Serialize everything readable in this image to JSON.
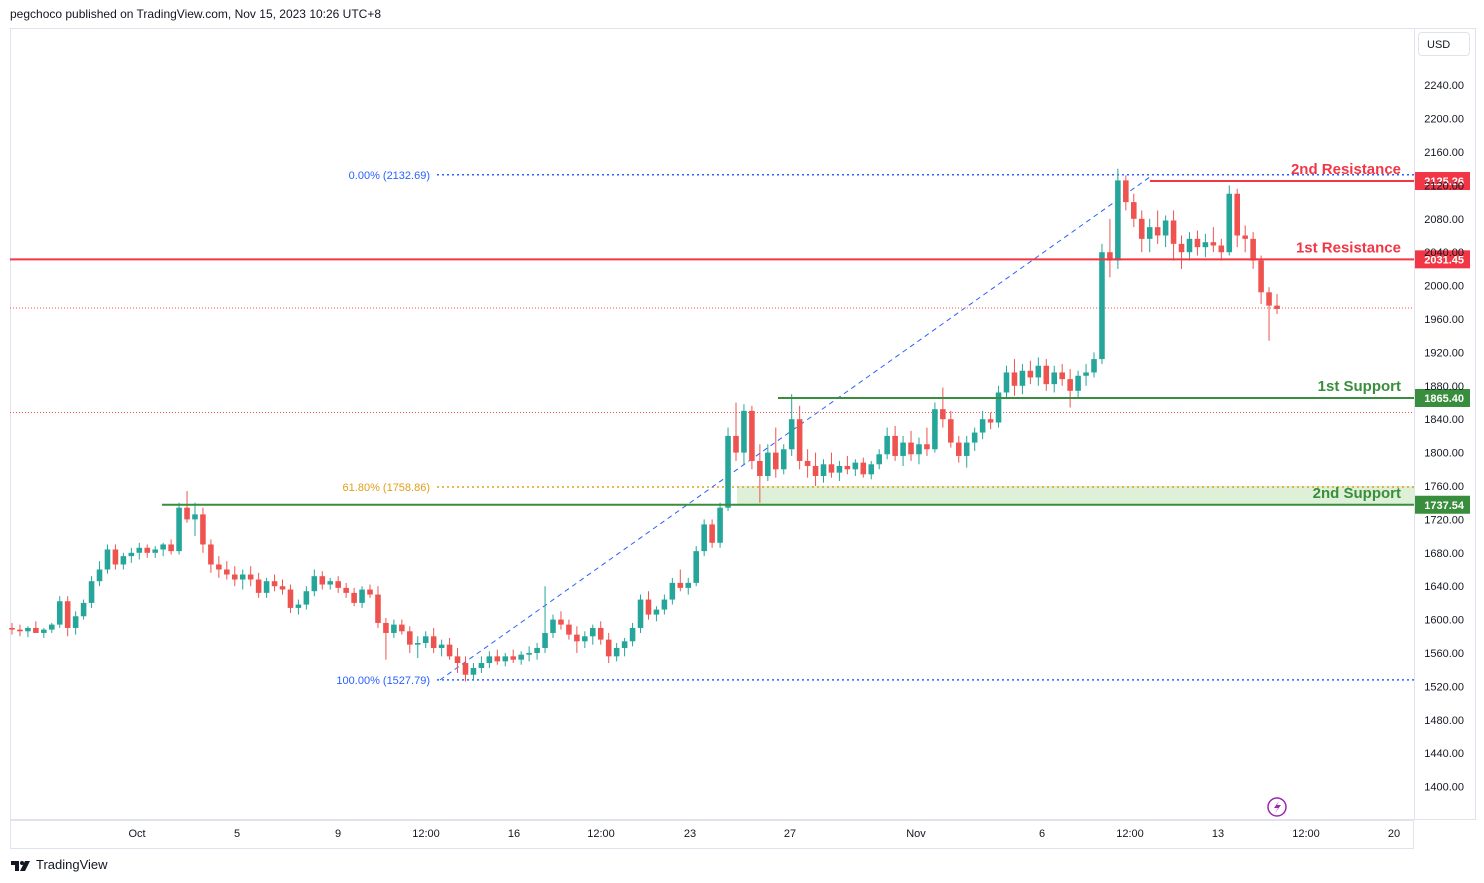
{
  "header": {
    "publisher": "pegchoco published on TradingView.com, Nov 15, 2023 10:26 UTC+8"
  },
  "axis": {
    "currency": "USD",
    "price_ticks": [
      "2240.00",
      "2200.00",
      "2160.00",
      "2120.00",
      "2080.00",
      "2040.00",
      "2000.00",
      "1960.00",
      "1920.00",
      "1880.00",
      "1840.00",
      "1800.00",
      "1760.00",
      "1720.00",
      "1680.00",
      "1640.00",
      "1600.00",
      "1560.00",
      "1520.00",
      "1480.00",
      "1440.00",
      "1400.00"
    ],
    "time_ticks": [
      "Oct",
      "5",
      "9",
      "12:00",
      "16",
      "12:00",
      "23",
      "27",
      "Nov",
      "6",
      "12:00",
      "13",
      "12:00",
      "20"
    ]
  },
  "footer": {
    "brand": "TradingView"
  },
  "colors": {
    "resistance": "#f23645",
    "support": "#388e3c",
    "up": "#26a69a",
    "down": "#ef5350",
    "fib_blue": "#2962ff",
    "fib_gold": "#e0a01a",
    "support_zone": "#dff0d8"
  },
  "chart_data": {
    "type": "candlestick",
    "title": "",
    "ylabel": "USD",
    "ylim": [
      1360,
      2280
    ],
    "levels": [
      {
        "name": "2nd Resistance",
        "value": 2125.26,
        "label": "2125.26",
        "kind": "resistance"
      },
      {
        "name": "1st Resistance",
        "value": 2031.45,
        "label": "2031.45",
        "kind": "resistance"
      },
      {
        "name": "1st Support",
        "value": 1865.4,
        "label": "1865.40",
        "kind": "support"
      },
      {
        "name": "2nd Support",
        "value": 1737.54,
        "label": "1737.54",
        "kind": "support"
      }
    ],
    "fibonacci": [
      {
        "label": "0.00% (2132.69)",
        "value": 2132.69
      },
      {
        "label": "61.80% (1758.86)",
        "value": 1758.86
      },
      {
        "label": "100.00% (1527.79)",
        "value": 1527.79
      }
    ],
    "current_price": 1972,
    "candles": [
      [
        1590,
        1596,
        1582,
        1588
      ],
      [
        1588,
        1594,
        1580,
        1586
      ],
      [
        1586,
        1592,
        1579,
        1590
      ],
      [
        1590,
        1598,
        1585,
        1584
      ],
      [
        1584,
        1590,
        1578,
        1588
      ],
      [
        1588,
        1596,
        1584,
        1594
      ],
      [
        1594,
        1628,
        1590,
        1622
      ],
      [
        1622,
        1628,
        1580,
        1590
      ],
      [
        1590,
        1610,
        1582,
        1604
      ],
      [
        1604,
        1624,
        1600,
        1620
      ],
      [
        1620,
        1652,
        1614,
        1646
      ],
      [
        1646,
        1670,
        1640,
        1660
      ],
      [
        1660,
        1690,
        1655,
        1684
      ],
      [
        1684,
        1690,
        1660,
        1666
      ],
      [
        1666,
        1680,
        1660,
        1676
      ],
      [
        1676,
        1686,
        1668,
        1680
      ],
      [
        1680,
        1692,
        1672,
        1686
      ],
      [
        1686,
        1690,
        1674,
        1680
      ],
      [
        1680,
        1688,
        1674,
        1684
      ],
      [
        1684,
        1692,
        1676,
        1690
      ],
      [
        1690,
        1696,
        1678,
        1682
      ],
      [
        1682,
        1740,
        1678,
        1734
      ],
      [
        1734,
        1754,
        1716,
        1720
      ],
      [
        1720,
        1740,
        1700,
        1726
      ],
      [
        1726,
        1734,
        1680,
        1690
      ],
      [
        1690,
        1696,
        1656,
        1666
      ],
      [
        1666,
        1676,
        1650,
        1660
      ],
      [
        1660,
        1670,
        1648,
        1654
      ],
      [
        1654,
        1664,
        1640,
        1648
      ],
      [
        1648,
        1660,
        1636,
        1654
      ],
      [
        1654,
        1664,
        1640,
        1648
      ],
      [
        1648,
        1656,
        1626,
        1632
      ],
      [
        1632,
        1650,
        1626,
        1646
      ],
      [
        1646,
        1654,
        1634,
        1640
      ],
      [
        1640,
        1648,
        1630,
        1636
      ],
      [
        1636,
        1642,
        1608,
        1614
      ],
      [
        1614,
        1624,
        1606,
        1618
      ],
      [
        1618,
        1640,
        1612,
        1634
      ],
      [
        1634,
        1660,
        1628,
        1652
      ],
      [
        1652,
        1658,
        1636,
        1642
      ],
      [
        1642,
        1650,
        1636,
        1646
      ],
      [
        1646,
        1652,
        1632,
        1638
      ],
      [
        1638,
        1644,
        1626,
        1632
      ],
      [
        1632,
        1638,
        1616,
        1620
      ],
      [
        1620,
        1640,
        1614,
        1636
      ],
      [
        1636,
        1642,
        1626,
        1630
      ],
      [
        1630,
        1640,
        1590,
        1596
      ],
      [
        1596,
        1602,
        1552,
        1584
      ],
      [
        1584,
        1600,
        1578,
        1594
      ],
      [
        1594,
        1600,
        1582,
        1586
      ],
      [
        1586,
        1592,
        1560,
        1570
      ],
      [
        1570,
        1580,
        1554,
        1572
      ],
      [
        1572,
        1586,
        1566,
        1580
      ],
      [
        1580,
        1590,
        1560,
        1566
      ],
      [
        1566,
        1576,
        1556,
        1570
      ],
      [
        1570,
        1578,
        1552,
        1556
      ],
      [
        1556,
        1566,
        1536,
        1548
      ],
      [
        1548,
        1556,
        1526,
        1534
      ],
      [
        1534,
        1548,
        1528,
        1542
      ],
      [
        1542,
        1556,
        1536,
        1548
      ],
      [
        1548,
        1562,
        1542,
        1556
      ],
      [
        1556,
        1564,
        1546,
        1550
      ],
      [
        1550,
        1560,
        1544,
        1556
      ],
      [
        1556,
        1564,
        1548,
        1552
      ],
      [
        1552,
        1562,
        1546,
        1558
      ],
      [
        1558,
        1568,
        1550,
        1560
      ],
      [
        1560,
        1572,
        1552,
        1566
      ],
      [
        1566,
        1640,
        1560,
        1584
      ],
      [
        1584,
        1606,
        1578,
        1600
      ],
      [
        1600,
        1610,
        1588,
        1594
      ],
      [
        1594,
        1600,
        1576,
        1582
      ],
      [
        1582,
        1592,
        1560,
        1574
      ],
      [
        1574,
        1586,
        1566,
        1580
      ],
      [
        1580,
        1594,
        1570,
        1590
      ],
      [
        1590,
        1598,
        1570,
        1576
      ],
      [
        1576,
        1584,
        1548,
        1556
      ],
      [
        1556,
        1572,
        1550,
        1566
      ],
      [
        1566,
        1578,
        1556,
        1574
      ],
      [
        1574,
        1596,
        1568,
        1590
      ],
      [
        1590,
        1630,
        1584,
        1624
      ],
      [
        1624,
        1634,
        1600,
        1606
      ],
      [
        1606,
        1616,
        1598,
        1612
      ],
      [
        1612,
        1630,
        1606,
        1624
      ],
      [
        1624,
        1650,
        1618,
        1644
      ],
      [
        1644,
        1660,
        1634,
        1638
      ],
      [
        1638,
        1650,
        1630,
        1644
      ],
      [
        1644,
        1688,
        1640,
        1682
      ],
      [
        1682,
        1720,
        1676,
        1714
      ],
      [
        1714,
        1720,
        1686,
        1692
      ],
      [
        1692,
        1740,
        1686,
        1734
      ],
      [
        1734,
        1830,
        1730,
        1820
      ],
      [
        1820,
        1860,
        1790,
        1800
      ],
      [
        1800,
        1858,
        1786,
        1850
      ],
      [
        1850,
        1856,
        1780,
        1790
      ],
      [
        1790,
        1810,
        1740,
        1772
      ],
      [
        1772,
        1810,
        1766,
        1800
      ],
      [
        1800,
        1830,
        1770,
        1780
      ],
      [
        1780,
        1810,
        1774,
        1804
      ],
      [
        1804,
        1870,
        1796,
        1840
      ],
      [
        1840,
        1856,
        1780,
        1790
      ],
      [
        1790,
        1804,
        1770,
        1784
      ],
      [
        1784,
        1800,
        1760,
        1772
      ],
      [
        1772,
        1792,
        1764,
        1786
      ],
      [
        1786,
        1800,
        1770,
        1776
      ],
      [
        1776,
        1790,
        1766,
        1784
      ],
      [
        1784,
        1796,
        1774,
        1780
      ],
      [
        1780,
        1792,
        1772,
        1788
      ],
      [
        1788,
        1794,
        1770,
        1774
      ],
      [
        1774,
        1790,
        1768,
        1786
      ],
      [
        1786,
        1804,
        1780,
        1798
      ],
      [
        1798,
        1830,
        1792,
        1820
      ],
      [
        1820,
        1832,
        1790,
        1796
      ],
      [
        1796,
        1820,
        1784,
        1812
      ],
      [
        1812,
        1826,
        1790,
        1798
      ],
      [
        1798,
        1818,
        1786,
        1810
      ],
      [
        1810,
        1830,
        1796,
        1804
      ],
      [
        1804,
        1860,
        1800,
        1852
      ],
      [
        1852,
        1878,
        1830,
        1840
      ],
      [
        1840,
        1850,
        1806,
        1812
      ],
      [
        1812,
        1820,
        1788,
        1796
      ],
      [
        1796,
        1820,
        1782,
        1812
      ],
      [
        1812,
        1830,
        1802,
        1824
      ],
      [
        1824,
        1850,
        1816,
        1840
      ],
      [
        1840,
        1848,
        1828,
        1836
      ],
      [
        1836,
        1880,
        1830,
        1872
      ],
      [
        1872,
        1904,
        1864,
        1896
      ],
      [
        1896,
        1912,
        1868,
        1880
      ],
      [
        1880,
        1906,
        1870,
        1898
      ],
      [
        1898,
        1910,
        1882,
        1890
      ],
      [
        1890,
        1914,
        1880,
        1904
      ],
      [
        1904,
        1912,
        1874,
        1882
      ],
      [
        1882,
        1904,
        1872,
        1896
      ],
      [
        1896,
        1906,
        1880,
        1888
      ],
      [
        1888,
        1900,
        1854,
        1874
      ],
      [
        1874,
        1898,
        1866,
        1892
      ],
      [
        1892,
        1906,
        1880,
        1896
      ],
      [
        1896,
        1920,
        1890,
        1912
      ],
      [
        1912,
        2050,
        1906,
        2040
      ],
      [
        2040,
        2080,
        2010,
        2030
      ],
      [
        2030,
        2140,
        2020,
        2126
      ],
      [
        2126,
        2132,
        2090,
        2100
      ],
      [
        2100,
        2110,
        2070,
        2080
      ],
      [
        2080,
        2090,
        2040,
        2056
      ],
      [
        2056,
        2080,
        2040,
        2070
      ],
      [
        2070,
        2090,
        2050,
        2060
      ],
      [
        2060,
        2084,
        2046,
        2078
      ],
      [
        2078,
        2090,
        2030,
        2050
      ],
      [
        2050,
        2060,
        2020,
        2040
      ],
      [
        2040,
        2064,
        2030,
        2056
      ],
      [
        2056,
        2066,
        2036,
        2046
      ],
      [
        2046,
        2062,
        2034,
        2052
      ],
      [
        2052,
        2070,
        2040,
        2048
      ],
      [
        2048,
        2056,
        2030,
        2040
      ],
      [
        2040,
        2120,
        2036,
        2110
      ],
      [
        2110,
        2116,
        2046,
        2060
      ],
      [
        2060,
        2072,
        2040,
        2056
      ],
      [
        2056,
        2064,
        2020,
        2030
      ],
      [
        2030,
        2036,
        1978,
        1992
      ],
      [
        1992,
        1998,
        1934,
        1976
      ],
      [
        1976,
        1990,
        1966,
        1972
      ]
    ]
  }
}
